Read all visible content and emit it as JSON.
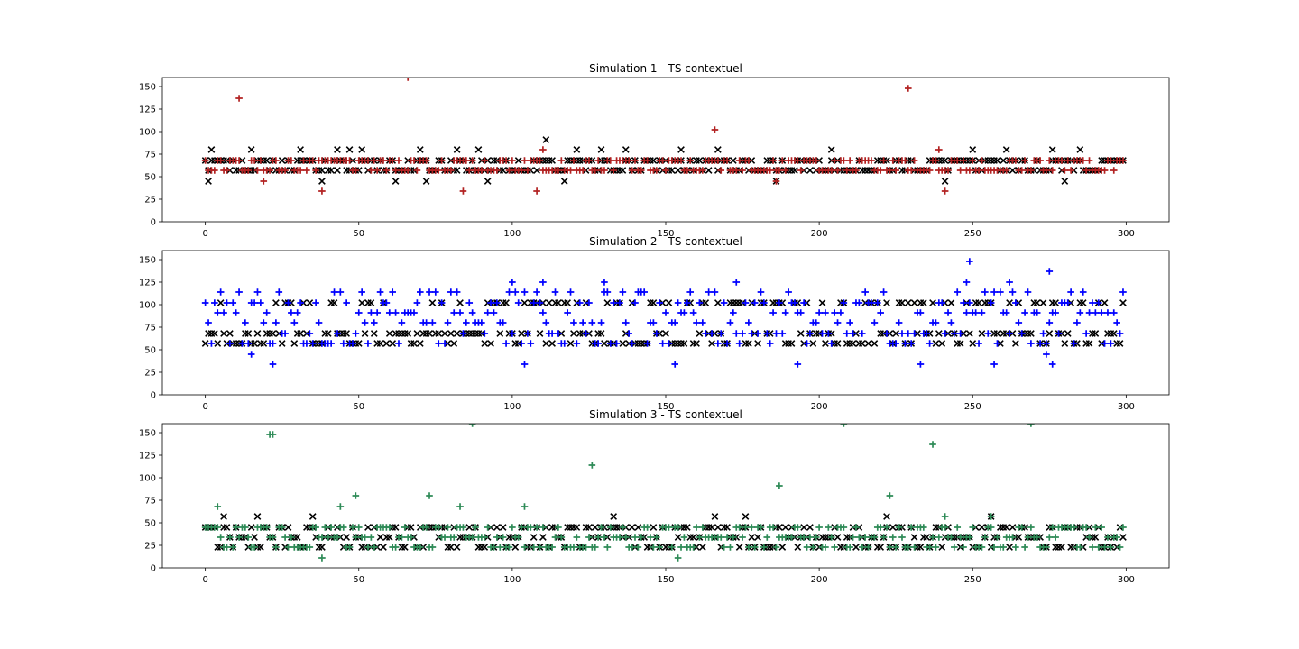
{
  "colors": {
    "black": "#000000",
    "simulation_1": "#b22222",
    "simulation_2": "#0000ff",
    "simulation_3": "#2e8b57",
    "axis": "#000000",
    "background": "#ffffff"
  },
  "chart_data": [
    {
      "type": "scatter",
      "title": "Simulation 1 - TS contextuel",
      "xlabel": "",
      "ylabel": "",
      "xlim": [
        -14,
        314
      ],
      "ylim": [
        0,
        160
      ],
      "xticks": [
        0,
        50,
        100,
        150,
        200,
        250,
        300
      ],
      "yticks": [
        0,
        25,
        50,
        75,
        100,
        125,
        150
      ],
      "grid": false,
      "series": [
        {
          "marker": "x",
          "color": "#000000",
          "levels": [
            57,
            68
          ],
          "rare": [
            [
              1,
              45
            ],
            [
              2,
              80
            ],
            [
              15,
              80
            ],
            [
              31,
              80
            ],
            [
              38,
              45
            ],
            [
              43,
              80
            ],
            [
              47,
              80
            ],
            [
              51,
              80
            ],
            [
              62,
              45
            ],
            [
              70,
              80
            ],
            [
              72,
              45
            ],
            [
              82,
              80
            ],
            [
              89,
              80
            ],
            [
              92,
              45
            ],
            [
              111,
              91
            ],
            [
              117,
              45
            ],
            [
              121,
              80
            ],
            [
              129,
              80
            ],
            [
              137,
              80
            ],
            [
              155,
              80
            ],
            [
              167,
              80
            ],
            [
              186,
              45
            ],
            [
              204,
              80
            ],
            [
              241,
              45
            ],
            [
              250,
              80
            ],
            [
              261,
              80
            ],
            [
              276,
              80
            ],
            [
              280,
              45
            ],
            [
              285,
              80
            ]
          ]
        },
        {
          "marker": "+",
          "color": "#b22222",
          "levels": [
            57,
            68
          ],
          "rare": [
            [
              11,
              137
            ],
            [
              19,
              45
            ],
            [
              38,
              34
            ],
            [
              66,
              160
            ],
            [
              84,
              34
            ],
            [
              108,
              34
            ],
            [
              110,
              80
            ],
            [
              166,
              102
            ],
            [
              186,
              45
            ],
            [
              229,
              148
            ],
            [
              239,
              80
            ],
            [
              241,
              34
            ]
          ]
        }
      ]
    },
    {
      "type": "scatter",
      "title": "Simulation 2 - TS contextuel",
      "xlabel": "",
      "ylabel": "",
      "xlim": [
        -14,
        314
      ],
      "ylim": [
        0,
        160
      ],
      "xticks": [
        0,
        50,
        100,
        150,
        200,
        250,
        300
      ],
      "yticks": [
        0,
        25,
        50,
        75,
        100,
        125,
        150
      ],
      "grid": false,
      "series": [
        {
          "marker": "x",
          "color": "#000000",
          "levels": [
            57,
            68,
            102
          ],
          "rare": []
        },
        {
          "marker": "+",
          "color": "#0000ff",
          "levels": [
            57,
            68,
            102,
            80,
            91,
            114
          ],
          "rare": [
            [
              15,
              45
            ],
            [
              22,
              34
            ],
            [
              100,
              125
            ],
            [
              104,
              34
            ],
            [
              110,
              125
            ],
            [
              130,
              125
            ],
            [
              153,
              34
            ],
            [
              173,
              125
            ],
            [
              193,
              34
            ],
            [
              233,
              34
            ],
            [
              248,
              125
            ],
            [
              249,
              148
            ],
            [
              257,
              34
            ],
            [
              262,
              125
            ],
            [
              275,
              137
            ],
            [
              276,
              34
            ],
            [
              274,
              45
            ]
          ]
        }
      ]
    },
    {
      "type": "scatter",
      "title": "Simulation 3 - TS contextuel",
      "xlabel": "",
      "ylabel": "",
      "xlim": [
        -14,
        314
      ],
      "ylim": [
        0,
        160
      ],
      "xticks": [
        0,
        50,
        100,
        150,
        200,
        250,
        300
      ],
      "yticks": [
        0,
        25,
        50,
        75,
        100,
        125,
        150
      ],
      "grid": false,
      "series": [
        {
          "marker": "x",
          "color": "#000000",
          "levels": [
            23,
            34,
            45
          ],
          "rare": [
            [
              6,
              57
            ],
            [
              17,
              57
            ],
            [
              35,
              57
            ],
            [
              133,
              57
            ],
            [
              166,
              57
            ],
            [
              176,
              57
            ],
            [
              222,
              57
            ],
            [
              256,
              57
            ]
          ]
        },
        {
          "marker": "+",
          "color": "#2e8b57",
          "levels": [
            23,
            34,
            45
          ],
          "rare": [
            [
              4,
              68
            ],
            [
              21,
              148
            ],
            [
              22,
              148
            ],
            [
              38,
              11
            ],
            [
              44,
              68
            ],
            [
              49,
              80
            ],
            [
              73,
              80
            ],
            [
              83,
              68
            ],
            [
              87,
              160
            ],
            [
              104,
              68
            ],
            [
              126,
              114
            ],
            [
              154,
              11
            ],
            [
              187,
              91
            ],
            [
              208,
              160
            ],
            [
              223,
              80
            ],
            [
              237,
              137
            ],
            [
              241,
              57
            ],
            [
              256,
              57
            ],
            [
              269,
              160
            ]
          ]
        }
      ]
    }
  ]
}
